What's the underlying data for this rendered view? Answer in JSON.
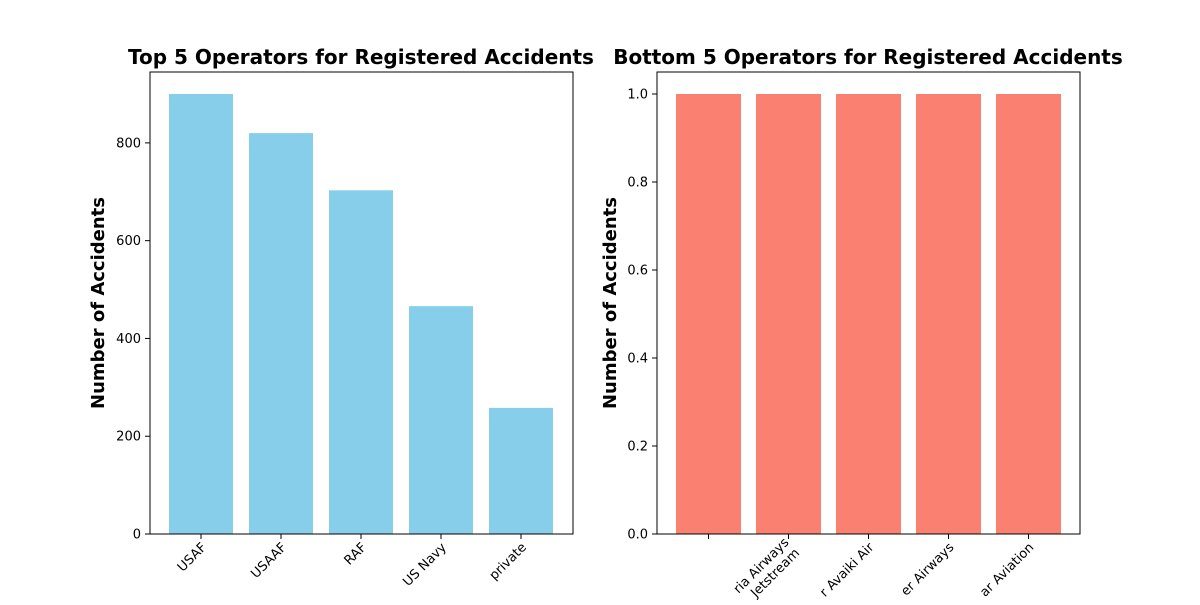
{
  "chart_data": [
    {
      "type": "bar",
      "title": "Top 5 Operators for Registered Accidents",
      "xlabel": "",
      "ylabel": "Number of Accidents",
      "categories": [
        "USAF",
        "USAAF",
        "RAF",
        "US Navy",
        "private"
      ],
      "values": [
        900,
        820,
        703,
        466,
        258
      ],
      "ylim": [
        0,
        945
      ],
      "yticks": [
        0,
        200,
        400,
        600,
        800
      ],
      "ytick_labels": [
        "0",
        "200",
        "400",
        "600",
        "800"
      ],
      "color": "#87CEEB",
      "grid": false
    },
    {
      "type": "bar",
      "title": "Bottom 5 Operators for Registered Accidents",
      "xlabel": "",
      "ylabel": "Number of Accidents",
      "categories": [
        "",
        "ria Airways Jetstream",
        "r Avaiki Air",
        "er Airways",
        "ar Aviation"
      ],
      "values": [
        1,
        1,
        1,
        1,
        1
      ],
      "ylim": [
        0,
        1.05
      ],
      "yticks": [
        0,
        0.2,
        0.4,
        0.6,
        0.8,
        1.0
      ],
      "ytick_labels": [
        "0.0",
        "0.2",
        "0.4",
        "0.6",
        "0.8",
        "1.0"
      ],
      "color": "#FA8072",
      "grid": false
    }
  ]
}
